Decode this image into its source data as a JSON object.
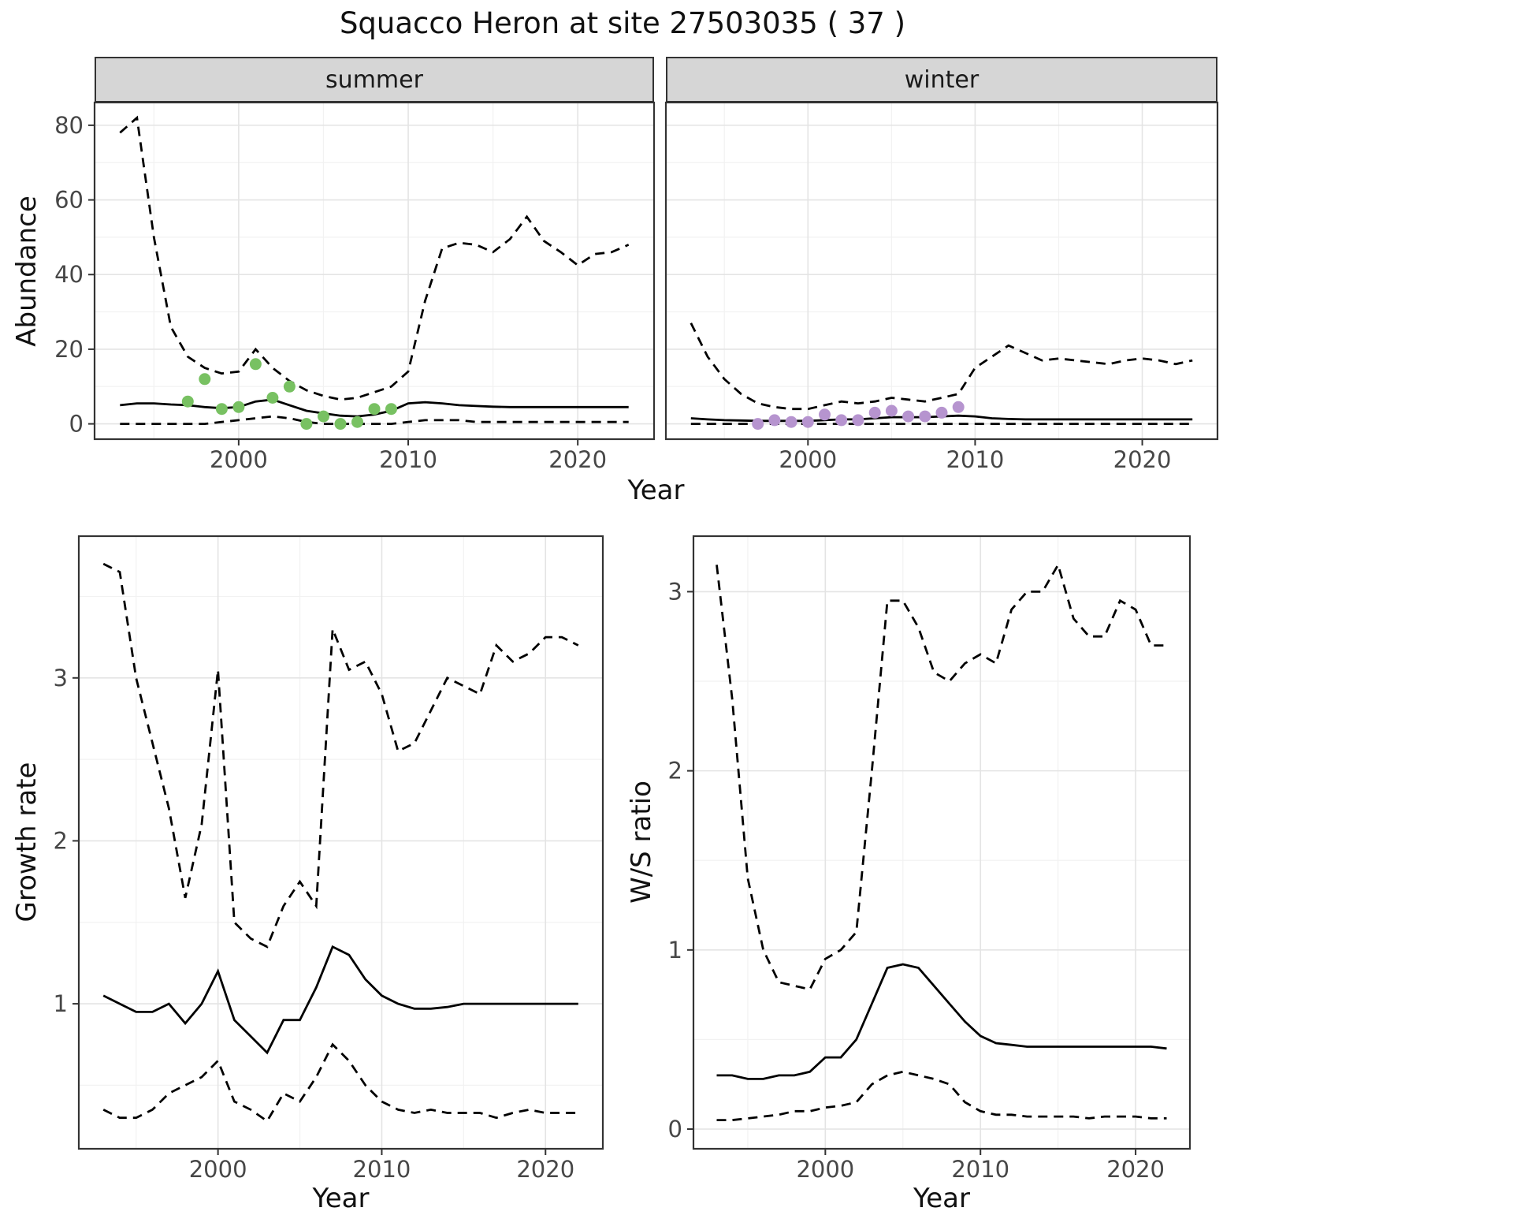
{
  "title": "Squacco Heron at site 27503035 ( 37 )",
  "colors": {
    "summer_points": "#78c162",
    "winter_points": "#b694cf",
    "line": "#000000",
    "strip_background": "#d6d6d6",
    "panel_border": "#333333",
    "grid_major": "#e4e4e4",
    "grid_minor": "#f2f2f2",
    "axis_text": "#474747"
  },
  "chart_data": [
    {
      "id": "summer-abundance",
      "type": "line",
      "facet_label": "summer",
      "xlabel": "Year",
      "ylabel": "Abundance",
      "xlim": [
        1991.5,
        2024.5
      ],
      "ylim": [
        -4.1,
        86.1
      ],
      "xticks": [
        2000,
        2010,
        2020
      ],
      "xticks_minor": [
        1995,
        2005,
        2015
      ],
      "yticks": [
        0,
        20,
        40,
        60,
        80
      ],
      "yticks_minor": [
        10,
        30,
        50,
        70
      ],
      "years": [
        1993,
        1994,
        1995,
        1996,
        1997,
        1998,
        1999,
        2000,
        2001,
        2002,
        2003,
        2004,
        2005,
        2006,
        2007,
        2008,
        2009,
        2010,
        2011,
        2012,
        2013,
        2014,
        2015,
        2016,
        2017,
        2018,
        2019,
        2020,
        2021,
        2022,
        2023
      ],
      "series": [
        {
          "name": "upper-ci",
          "style": "dashed",
          "values": [
            78,
            82,
            50,
            26,
            18,
            15,
            13.5,
            14,
            20,
            15,
            11.5,
            9,
            7.5,
            6.5,
            7,
            8.5,
            10,
            14,
            33,
            47,
            48.5,
            48,
            46,
            49.5,
            55.5,
            49,
            46,
            42.5,
            45.5,
            46,
            48
          ]
        },
        {
          "name": "estimate",
          "style": "solid",
          "values": [
            5,
            5.5,
            5.5,
            5.2,
            5,
            4.5,
            4.2,
            4.5,
            6,
            6.5,
            5,
            3.5,
            2.8,
            2.2,
            2,
            2.5,
            3.5,
            5.5,
            5.8,
            5.5,
            5,
            4.8,
            4.6,
            4.5,
            4.5,
            4.5,
            4.5,
            4.5,
            4.5,
            4.5,
            4.5
          ]
        },
        {
          "name": "lower-ci",
          "style": "dashed",
          "values": [
            0,
            0,
            0,
            0,
            0,
            0,
            0.5,
            1,
            1.5,
            2,
            1.5,
            0.5,
            0,
            0,
            0,
            0,
            0,
            0.5,
            1,
            1,
            1,
            0.5,
            0.5,
            0.5,
            0.5,
            0.5,
            0.5,
            0.5,
            0.5,
            0.5,
            0.5
          ]
        }
      ],
      "points": {
        "name": "observed-counts",
        "color": "#78c162",
        "x": [
          1997,
          1998,
          1999,
          2000,
          2001,
          2002,
          2003,
          2004,
          2005,
          2006,
          2007,
          2008,
          2009
        ],
        "y": [
          6,
          12,
          4,
          4.5,
          16,
          7,
          10,
          0,
          2,
          0,
          0.5,
          4,
          4
        ]
      }
    },
    {
      "id": "winter-abundance",
      "type": "line",
      "facet_label": "winter",
      "xlabel": "Year",
      "ylabel": "Abundance",
      "xlim": [
        1991.5,
        2024.5
      ],
      "ylim": [
        -4.1,
        86.1
      ],
      "xticks": [
        2000,
        2010,
        2020
      ],
      "xticks_minor": [
        1995,
        2005,
        2015
      ],
      "yticks": [
        0,
        20,
        40,
        60,
        80
      ],
      "yticks_minor": [
        10,
        30,
        50,
        70
      ],
      "years": [
        1993,
        1994,
        1995,
        1996,
        1997,
        1998,
        1999,
        2000,
        2001,
        2002,
        2003,
        2004,
        2005,
        2006,
        2007,
        2008,
        2009,
        2010,
        2011,
        2012,
        2013,
        2014,
        2015,
        2016,
        2017,
        2018,
        2019,
        2020,
        2021,
        2022,
        2023
      ],
      "series": [
        {
          "name": "upper-ci",
          "style": "dashed",
          "values": [
            27,
            18,
            12,
            8,
            5.5,
            4.5,
            4,
            4,
            5,
            6,
            5.5,
            6,
            7,
            6.5,
            6,
            7,
            8,
            15,
            18,
            21,
            19,
            17,
            17.5,
            17,
            16.5,
            16,
            17,
            17.5,
            17,
            16,
            17
          ]
        },
        {
          "name": "estimate",
          "style": "solid",
          "values": [
            1.5,
            1.2,
            1,
            0.9,
            0.8,
            0.8,
            0.8,
            0.8,
            1,
            1.2,
            1.2,
            1.5,
            1.8,
            1.8,
            1.8,
            2,
            2.2,
            2,
            1.5,
            1.3,
            1.2,
            1.2,
            1.2,
            1.2,
            1.2,
            1.2,
            1.2,
            1.2,
            1.2,
            1.2,
            1.2
          ]
        },
        {
          "name": "lower-ci",
          "style": "dashed",
          "values": [
            0,
            0,
            0,
            0,
            0,
            0,
            0,
            0,
            0,
            0,
            0,
            0,
            0,
            0,
            0,
            0,
            0,
            0,
            0,
            0,
            0,
            0,
            0,
            0,
            0,
            0,
            0,
            0,
            0,
            0,
            0
          ]
        }
      ],
      "points": {
        "name": "observed-counts",
        "color": "#b694cf",
        "x": [
          1997,
          1998,
          1999,
          2000,
          2001,
          2002,
          2003,
          2004,
          2005,
          2006,
          2007,
          2008,
          2009
        ],
        "y": [
          0,
          1,
          0.5,
          0.5,
          2.5,
          1,
          1,
          3,
          3.5,
          2,
          2,
          3,
          4.5
        ]
      }
    },
    {
      "id": "growth-rate",
      "type": "line",
      "facet_label": "",
      "xlabel": "Year",
      "ylabel": "Growth rate",
      "xlim": [
        1991.5,
        2023.5
      ],
      "ylim": [
        0.11,
        3.87
      ],
      "xticks": [
        2000,
        2010,
        2020
      ],
      "xticks_minor": [
        1995,
        2005,
        2015
      ],
      "yticks": [
        1,
        2,
        3
      ],
      "yticks_minor": [
        0.5,
        1.5,
        2.5,
        3.5
      ],
      "years": [
        1993,
        1994,
        1995,
        1996,
        1997,
        1998,
        1999,
        2000,
        2001,
        2002,
        2003,
        2004,
        2005,
        2006,
        2007,
        2008,
        2009,
        2010,
        2011,
        2012,
        2013,
        2014,
        2015,
        2016,
        2017,
        2018,
        2019,
        2020,
        2021,
        2022
      ],
      "series": [
        {
          "name": "upper-ci",
          "style": "dashed",
          "values": [
            3.7,
            3.65,
            3.0,
            2.6,
            2.2,
            1.65,
            2.1,
            3.05,
            1.5,
            1.4,
            1.35,
            1.6,
            1.75,
            1.6,
            3.3,
            3.05,
            3.1,
            2.9,
            2.55,
            2.6,
            2.8,
            3.0,
            2.95,
            2.9,
            3.2,
            3.1,
            3.15,
            3.25,
            3.25,
            3.2
          ]
        },
        {
          "name": "estimate",
          "style": "solid",
          "values": [
            1.05,
            1.0,
            0.95,
            0.95,
            1.0,
            0.88,
            1.0,
            1.2,
            0.9,
            0.8,
            0.7,
            0.9,
            0.9,
            1.1,
            1.35,
            1.3,
            1.15,
            1.05,
            1.0,
            0.97,
            0.97,
            0.98,
            1.0,
            1.0,
            1.0,
            1.0,
            1.0,
            1.0,
            1.0,
            1.0
          ]
        },
        {
          "name": "lower-ci",
          "style": "dashed",
          "values": [
            0.35,
            0.3,
            0.3,
            0.35,
            0.45,
            0.5,
            0.55,
            0.65,
            0.4,
            0.35,
            0.28,
            0.45,
            0.4,
            0.55,
            0.75,
            0.65,
            0.5,
            0.4,
            0.35,
            0.33,
            0.35,
            0.33,
            0.33,
            0.33,
            0.3,
            0.33,
            0.35,
            0.33,
            0.33,
            0.33
          ]
        }
      ]
    },
    {
      "id": "ws-ratio",
      "type": "line",
      "facet_label": "",
      "xlabel": "Year",
      "ylabel": "W/S ratio",
      "xlim": [
        1991.5,
        2023.5
      ],
      "ylim": [
        -0.11,
        3.31
      ],
      "xticks": [
        2000,
        2010,
        2020
      ],
      "xticks_minor": [
        1995,
        2005,
        2015
      ],
      "yticks": [
        0,
        1,
        2,
        3
      ],
      "yticks_minor": [
        0.5,
        1.5,
        2.5
      ],
      "years": [
        1993,
        1994,
        1995,
        1996,
        1997,
        1998,
        1999,
        2000,
        2001,
        2002,
        2003,
        2004,
        2005,
        2006,
        2007,
        2008,
        2009,
        2010,
        2011,
        2012,
        2013,
        2014,
        2015,
        2016,
        2017,
        2018,
        2019,
        2020,
        2021,
        2022
      ],
      "series": [
        {
          "name": "upper-ci",
          "style": "dashed",
          "values": [
            3.15,
            2.4,
            1.4,
            1.0,
            0.82,
            0.8,
            0.78,
            0.95,
            1.0,
            1.1,
            2.0,
            2.95,
            2.95,
            2.8,
            2.55,
            2.5,
            2.6,
            2.65,
            2.6,
            2.9,
            3.0,
            3.0,
            3.15,
            2.85,
            2.75,
            2.75,
            2.95,
            2.9,
            2.7,
            2.7
          ]
        },
        {
          "name": "estimate",
          "style": "solid",
          "values": [
            0.3,
            0.3,
            0.28,
            0.28,
            0.3,
            0.3,
            0.32,
            0.4,
            0.4,
            0.5,
            0.7,
            0.9,
            0.92,
            0.9,
            0.8,
            0.7,
            0.6,
            0.52,
            0.48,
            0.47,
            0.46,
            0.46,
            0.46,
            0.46,
            0.46,
            0.46,
            0.46,
            0.46,
            0.46,
            0.45
          ]
        },
        {
          "name": "lower-ci",
          "style": "dashed",
          "values": [
            0.05,
            0.05,
            0.06,
            0.07,
            0.08,
            0.1,
            0.1,
            0.12,
            0.13,
            0.15,
            0.25,
            0.3,
            0.32,
            0.3,
            0.28,
            0.25,
            0.15,
            0.1,
            0.08,
            0.08,
            0.07,
            0.07,
            0.07,
            0.07,
            0.06,
            0.07,
            0.07,
            0.07,
            0.06,
            0.06
          ]
        }
      ]
    }
  ]
}
